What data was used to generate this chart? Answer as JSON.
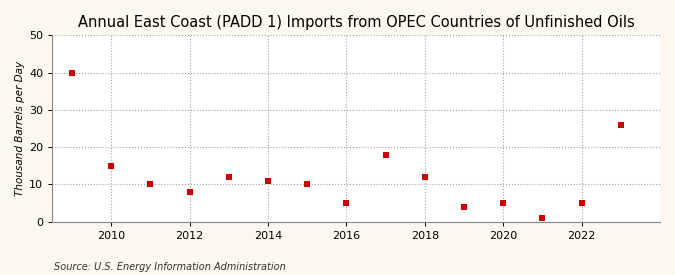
{
  "title": "Annual East Coast (PADD 1) Imports from OPEC Countries of Unfinished Oils",
  "ylabel": "Thousand Barrels per Day",
  "source": "Source: U.S. Energy Information Administration",
  "bg_color": "#fdf8ee",
  "plot_bg_color": "#ffffff",
  "years": [
    2009,
    2010,
    2011,
    2012,
    2013,
    2014,
    2015,
    2016,
    2017,
    2018,
    2019,
    2020,
    2021,
    2022,
    2023
  ],
  "values": [
    40,
    15,
    10,
    8,
    12,
    11,
    10,
    5,
    18,
    12,
    4,
    5,
    1,
    5,
    26
  ],
  "marker_color": "#cc0000",
  "marker_size": 5,
  "xlim": [
    2008.5,
    2024.0
  ],
  "ylim": [
    0,
    50
  ],
  "yticks": [
    0,
    10,
    20,
    30,
    40,
    50
  ],
  "xticks": [
    2010,
    2012,
    2014,
    2016,
    2018,
    2020,
    2022
  ],
  "grid_color": "#999999",
  "title_fontsize": 10.5,
  "label_fontsize": 7.5,
  "tick_fontsize": 8,
  "source_fontsize": 7
}
